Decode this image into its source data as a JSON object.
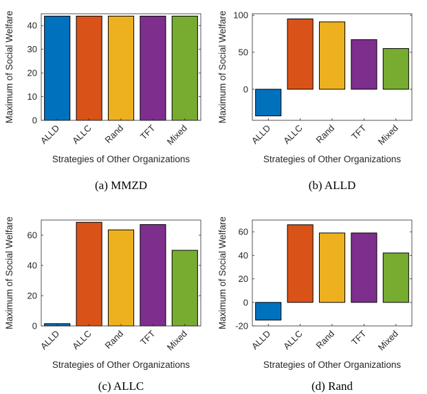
{
  "figure": {
    "series_colors": {
      "ALLD": "#0072BD",
      "ALLC": "#D95319",
      "Rand": "#EDB120",
      "TFT": "#7E2F8E",
      "Mixed": "#77AC30"
    }
  },
  "chart_data": [
    {
      "type": "bar",
      "caption": "(a)  MMZD",
      "categories": [
        "ALLD",
        "ALLC",
        "Rand",
        "TFT",
        "Mixed"
      ],
      "values": [
        44,
        44,
        44,
        44,
        44
      ],
      "xlabel": "Strategies of Other Organizations",
      "ylabel": "Maximum of Social Welfare",
      "ylim": [
        0,
        45
      ],
      "yticks": [
        0,
        10,
        20,
        30,
        40
      ],
      "grid": false
    },
    {
      "type": "bar",
      "caption": "(b)  ALLD",
      "categories": [
        "ALLD",
        "ALLC",
        "Rand",
        "TFT",
        "Mixed"
      ],
      "values": [
        -36,
        95,
        91,
        67,
        55
      ],
      "xlabel": "Strategies of Other Organizations",
      "ylabel": "Maximum of Social Welfare",
      "ylim": [
        -42,
        102
      ],
      "yticks": [
        0,
        50,
        100
      ],
      "grid": false
    },
    {
      "type": "bar",
      "caption": "(c)  ALLC",
      "categories": [
        "ALLD",
        "ALLC",
        "Rand",
        "TFT",
        "Mixed"
      ],
      "values": [
        1.5,
        68.5,
        63.5,
        67,
        50
      ],
      "xlabel": "Strategies of Other Organizations",
      "ylabel": "Maximum of Social Welfare",
      "ylim": [
        0,
        70
      ],
      "yticks": [
        0,
        20,
        40,
        60
      ],
      "grid": false
    },
    {
      "type": "bar",
      "caption": "(d)  Rand",
      "categories": [
        "ALLD",
        "ALLC",
        "Rand",
        "TFT",
        "Mixed"
      ],
      "values": [
        -15,
        66,
        59,
        59,
        42
      ],
      "xlabel": "Strategies of Other Organizations",
      "ylabel": "Maximum of Social Welfare",
      "ylim": [
        -20,
        70
      ],
      "yticks": [
        -20,
        0,
        20,
        40,
        60
      ],
      "grid": false
    }
  ]
}
